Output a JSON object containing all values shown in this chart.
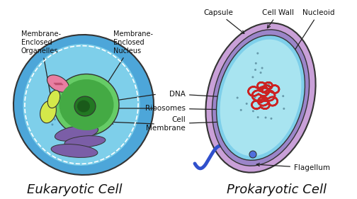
{
  "bg_color": "#ffffff",
  "title_fontsize": 13,
  "label_fontsize": 7.5,
  "eukaryotic_label": "Eukaryotic Cell",
  "prokaryotic_label": "Prokaryotic Cell",
  "text_color": "#111111",
  "arrow_color": "#222222",
  "labels": {
    "membrane_enclosed_organelles": "Membrane-\nEnclosed\nOrganelles",
    "membrane_enclosed_nucleus": "Membrane-\nEnclosed\nNucleus",
    "capsule": "Capsule",
    "cell_wall": "Cell Wall",
    "nucleoid": "Nucleoid",
    "dna": "DNA",
    "ribosomes": "Ribosomes",
    "cell_membrane": "Cell\nMembrane",
    "flagellum": "Flagellum"
  },
  "colors": {
    "outer_blue": "#4da6d9",
    "mid_blue": "#7ecfea",
    "inner_blue": "#a8e4f0",
    "nucleus_green": "#66cc66",
    "nucleus_inner": "#44aa44",
    "nucleolus": "#227722",
    "nucleolus_inner": "#1a5a1a",
    "mitochondria_pink": "#e87ea1",
    "mito_inner": "#c05070",
    "yellow_organelle": "#d4e84a",
    "purple_er": "#7b5ea7",
    "capsule_purple": "#c9a0d8",
    "cell_wall_lavender": "#9b85c9",
    "prokaryote_outer": "#7ecfea",
    "prokaryote_inner": "#a8e4f0",
    "nucleoid_red": "#cc2222",
    "flagellum_blue": "#3050cc",
    "flagellum_ball": "#5070dd",
    "outline": "#333333",
    "ribosome_dot_euk": "#5599bb",
    "ribosome_dot_pro": "#6699aa"
  }
}
